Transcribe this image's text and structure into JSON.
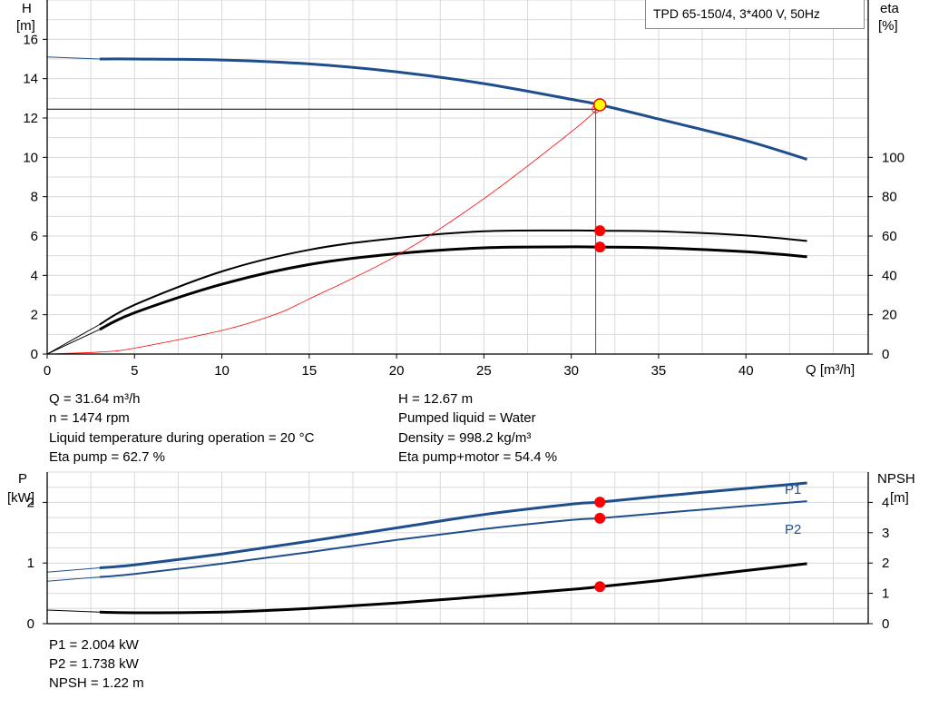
{
  "legend_text": "TPD 65-150/4, 3*400 V, 50Hz",
  "colors": {
    "blue": "#1f4e8c",
    "red": "#ff0000",
    "black": "#000000",
    "grid": "#d9d9d9",
    "duty": "#ffff00"
  },
  "top": {
    "y_left": {
      "label1": "H",
      "label2": "[m]",
      "ticks": [
        0,
        2,
        4,
        6,
        8,
        10,
        12,
        14,
        16
      ]
    },
    "y_right": {
      "label1": "eta",
      "label2": "[%]",
      "ticks": [
        0,
        20,
        40,
        60,
        80,
        100
      ]
    },
    "x": {
      "label": "Q [m³/h]",
      "ticks": [
        0,
        5,
        10,
        15,
        20,
        25,
        30,
        35,
        40
      ]
    }
  },
  "info_left": [
    "Q = 31.64 m³/h",
    "n = 1474 rpm",
    "Liquid temperature during operation = 20 °C",
    "Eta pump = 62.7 %"
  ],
  "info_right": [
    "H = 12.67 m",
    "Pumped liquid = Water",
    "Density = 998.2 kg/m³",
    "Eta pump+motor = 54.4 %"
  ],
  "bottom": {
    "y_left": {
      "label1": "P",
      "label2": "[kW]",
      "ticks": [
        0,
        1,
        2
      ]
    },
    "y_right": {
      "label1": "NPSH",
      "label2": "[m]",
      "ticks": [
        0,
        1,
        2,
        3,
        4
      ]
    },
    "p1_label": "P1",
    "p2_label": "P2"
  },
  "info_bottom": [
    "P1 = 2.004 kW",
    "P2 = 1.738 kW",
    "NPSH = 1.22 m"
  ],
  "chart_data": [
    {
      "type": "line",
      "xlim": [
        0,
        47
      ],
      "ylim": [
        0,
        18
      ],
      "y2lim": [
        0,
        180
      ],
      "series": [
        {
          "name": "H",
          "axis": "left",
          "x": [
            0,
            3,
            5,
            10,
            15,
            20,
            25,
            30,
            31.64,
            35,
            40,
            43.5
          ],
          "y": [
            15.1,
            15.0,
            15.0,
            14.95,
            14.75,
            14.35,
            13.75,
            12.95,
            12.67,
            11.95,
            10.85,
            9.9
          ]
        },
        {
          "name": "Eta pump",
          "axis": "right",
          "x": [
            0,
            3,
            5,
            10,
            15,
            20,
            25,
            30,
            31.64,
            35,
            40,
            43.5
          ],
          "y": [
            0,
            15,
            25,
            42,
            53,
            59,
            62.4,
            62.8,
            62.7,
            62.4,
            60.3,
            57.5
          ]
        },
        {
          "name": "Eta pump+motor",
          "axis": "right",
          "x": [
            0,
            3,
            5,
            10,
            15,
            20,
            25,
            30,
            31.64,
            35,
            40,
            43.5
          ],
          "y": [
            0,
            12.5,
            21,
            35.5,
            45.5,
            51,
            54,
            54.5,
            54.4,
            54,
            52,
            49.5
          ]
        },
        {
          "name": "System curve",
          "axis": "left",
          "x": [
            0,
            3,
            5,
            10,
            13,
            15,
            20,
            25,
            30,
            31.5
          ],
          "y": [
            0,
            0.1,
            0.3,
            1.2,
            2.0,
            2.8,
            5.0,
            7.9,
            11.3,
            12.45
          ]
        }
      ],
      "duty_point": {
        "x": 31.64,
        "y": 12.67
      }
    },
    {
      "type": "line",
      "xlim": [
        0,
        47
      ],
      "ylim": [
        0,
        2.5
      ],
      "y2lim": [
        0,
        5
      ],
      "series": [
        {
          "name": "P1",
          "axis": "left",
          "x": [
            0,
            3,
            5,
            10,
            15,
            20,
            25,
            30,
            31.64,
            35,
            40,
            43.5
          ],
          "y": [
            0.85,
            0.92,
            0.97,
            1.15,
            1.36,
            1.58,
            1.8,
            1.97,
            2.004,
            2.1,
            2.23,
            2.32
          ]
        },
        {
          "name": "P2",
          "axis": "left",
          "x": [
            0,
            3,
            5,
            10,
            15,
            20,
            25,
            30,
            31.64,
            35,
            40,
            43.5
          ],
          "y": [
            0.7,
            0.77,
            0.82,
            0.99,
            1.18,
            1.38,
            1.56,
            1.71,
            1.738,
            1.82,
            1.94,
            2.02
          ]
        },
        {
          "name": "NPSH",
          "axis": "right",
          "x": [
            0,
            3,
            5,
            10,
            15,
            20,
            25,
            30,
            31.64,
            35,
            40,
            43.5
          ],
          "y": [
            0.45,
            0.38,
            0.36,
            0.38,
            0.5,
            0.68,
            0.9,
            1.13,
            1.22,
            1.42,
            1.75,
            1.98
          ]
        }
      ],
      "duty_points": [
        {
          "series": "P1",
          "x": 31.64,
          "y": 2.004
        },
        {
          "series": "P2",
          "x": 31.64,
          "y": 1.738
        },
        {
          "series": "NPSH",
          "x": 31.64,
          "y": 1.22
        }
      ]
    }
  ]
}
